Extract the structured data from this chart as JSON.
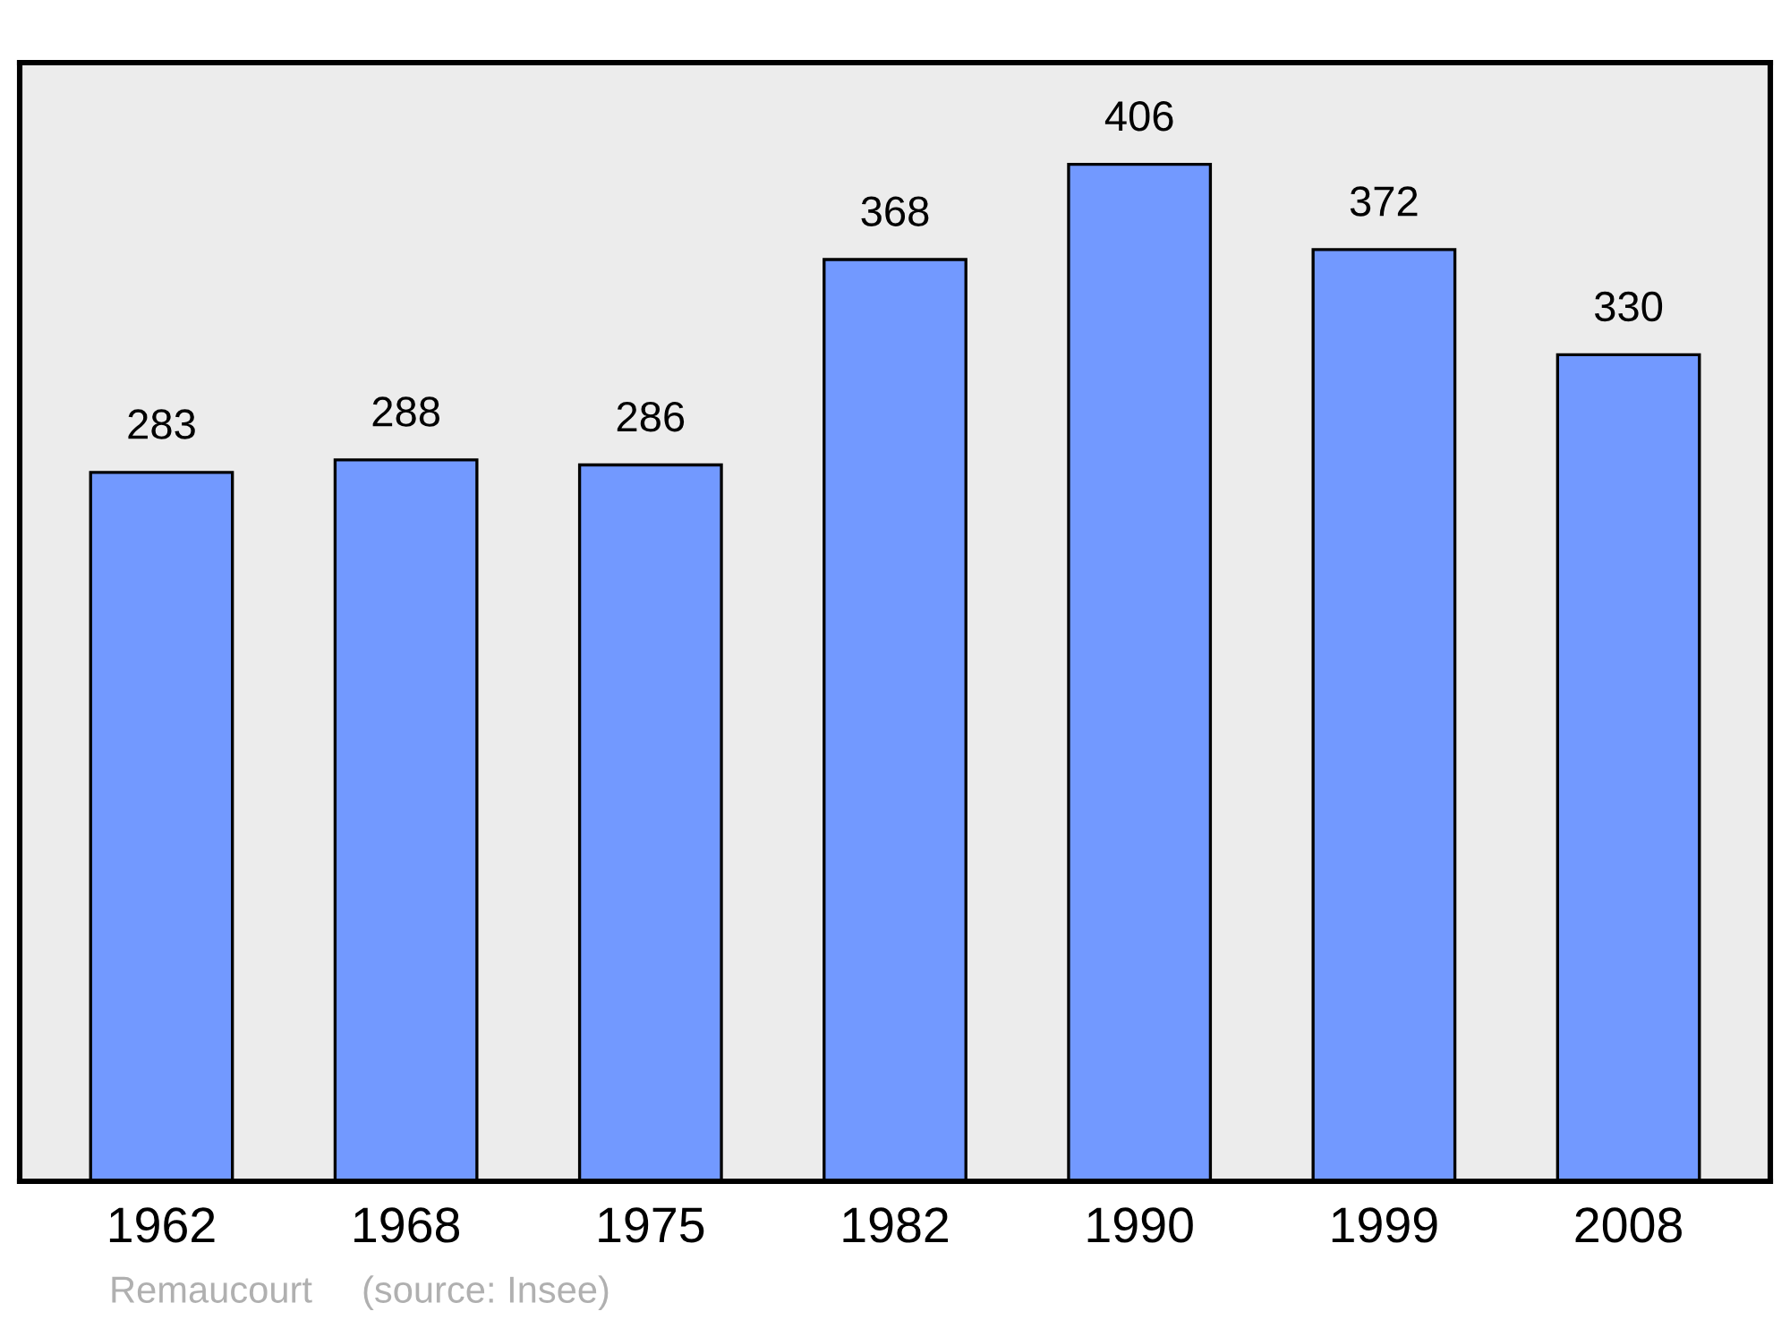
{
  "chart_data": {
    "type": "bar",
    "categories": [
      "1962",
      "1968",
      "1975",
      "1982",
      "1990",
      "1999",
      "2008"
    ],
    "values": [
      283,
      288,
      286,
      368,
      406,
      372,
      330
    ],
    "color": "#7299ff",
    "data_labels": true,
    "grid": false,
    "legend": false,
    "tick_labels": "x",
    "annotations": [
      "Remaucourt",
      "(source: Insee)"
    ]
  }
}
